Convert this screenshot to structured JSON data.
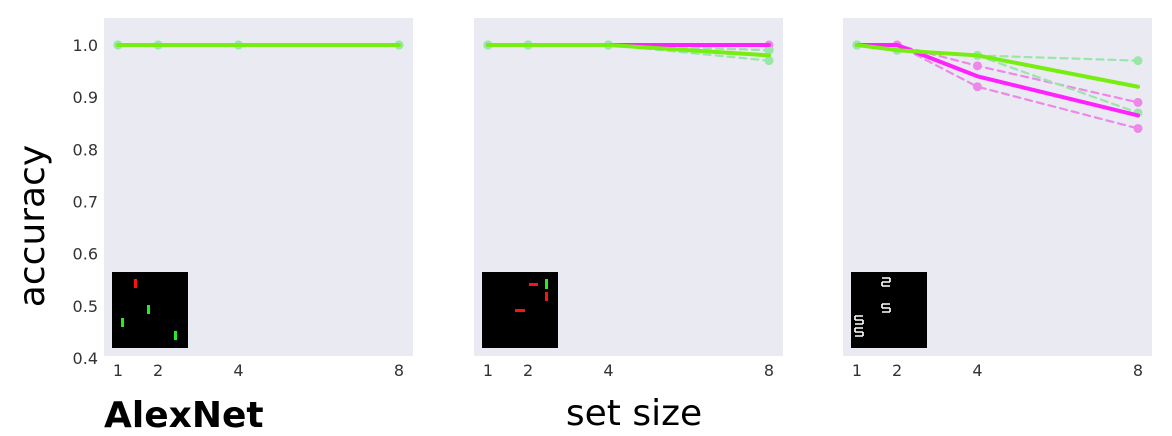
{
  "figure": {
    "ylabel": "accuracy",
    "xlabel": "set size",
    "model_label": "AlexNet"
  },
  "colors": {
    "panel_bg": "#eaeaf2",
    "green": "#77ee11",
    "green_faint": "#99e6a8",
    "magenta": "#ff22ff",
    "magenta_faint": "#ee88e8",
    "stim_bg": "#000000",
    "stim_red": "#ff1111",
    "stim_green": "#22ee22",
    "stim_white": "#ffffff"
  },
  "chart_data": [
    {
      "type": "line",
      "x": [
        1,
        2,
        4,
        8
      ],
      "xticks": [
        "1",
        "2",
        "4",
        "8"
      ],
      "yticks": [
        "0.4",
        "0.5",
        "0.6",
        "0.7",
        "0.8",
        "0.9",
        "1.0"
      ],
      "ylim": [
        0.4,
        1.05
      ],
      "grid": false,
      "stimulus": "feature",
      "series": [
        {
          "values": [
            1.0,
            1.0,
            1.0,
            1.0
          ],
          "color": "green",
          "style": "solid"
        },
        {
          "values": [
            1.0,
            1.0,
            1.0,
            1.0
          ],
          "color": "green",
          "style": "dashed"
        },
        {
          "values": [
            1.0,
            1.0,
            1.0,
            1.0
          ],
          "color": "green",
          "style": "dashed"
        }
      ]
    },
    {
      "type": "line",
      "x": [
        1,
        2,
        4,
        8
      ],
      "xticks": [
        "1",
        "2",
        "4",
        "8"
      ],
      "yticks": [],
      "ylim": [
        0.4,
        1.05
      ],
      "grid": false,
      "stimulus": "conjunction",
      "series": [
        {
          "values": [
            1.0,
            1.0,
            1.0,
            1.0
          ],
          "color": "magenta",
          "style": "solid"
        },
        {
          "values": [
            1.0,
            1.0,
            1.0,
            1.0
          ],
          "color": "magenta",
          "style": "dashed"
        },
        {
          "values": [
            1.0,
            1.0,
            1.0,
            0.99
          ],
          "color": "magenta",
          "style": "dashed"
        },
        {
          "values": [
            1.0,
            1.0,
            1.0,
            0.98
          ],
          "color": "green",
          "style": "solid"
        },
        {
          "values": [
            1.0,
            1.0,
            1.0,
            0.99
          ],
          "color": "green",
          "style": "dashed"
        },
        {
          "values": [
            1.0,
            1.0,
            1.0,
            0.97
          ],
          "color": "green",
          "style": "dashed"
        }
      ]
    },
    {
      "type": "line",
      "x": [
        1,
        2,
        4,
        8
      ],
      "xticks": [
        "1",
        "2",
        "4",
        "8"
      ],
      "yticks": [],
      "ylim": [
        0.4,
        1.05
      ],
      "grid": false,
      "stimulus": "spatial",
      "series": [
        {
          "values": [
            1.0,
            1.0,
            0.94,
            0.865
          ],
          "color": "magenta",
          "style": "solid"
        },
        {
          "values": [
            1.0,
            1.0,
            0.96,
            0.89
          ],
          "color": "magenta",
          "style": "dashed"
        },
        {
          "values": [
            1.0,
            1.0,
            0.92,
            0.84
          ],
          "color": "magenta",
          "style": "dashed"
        },
        {
          "values": [
            1.0,
            0.99,
            0.98,
            0.92
          ],
          "color": "green",
          "style": "solid"
        },
        {
          "values": [
            1.0,
            0.99,
            0.98,
            0.97
          ],
          "color": "green",
          "style": "dashed"
        },
        {
          "values": [
            1.0,
            0.99,
            0.98,
            0.87
          ],
          "color": "green",
          "style": "dashed"
        }
      ]
    }
  ]
}
